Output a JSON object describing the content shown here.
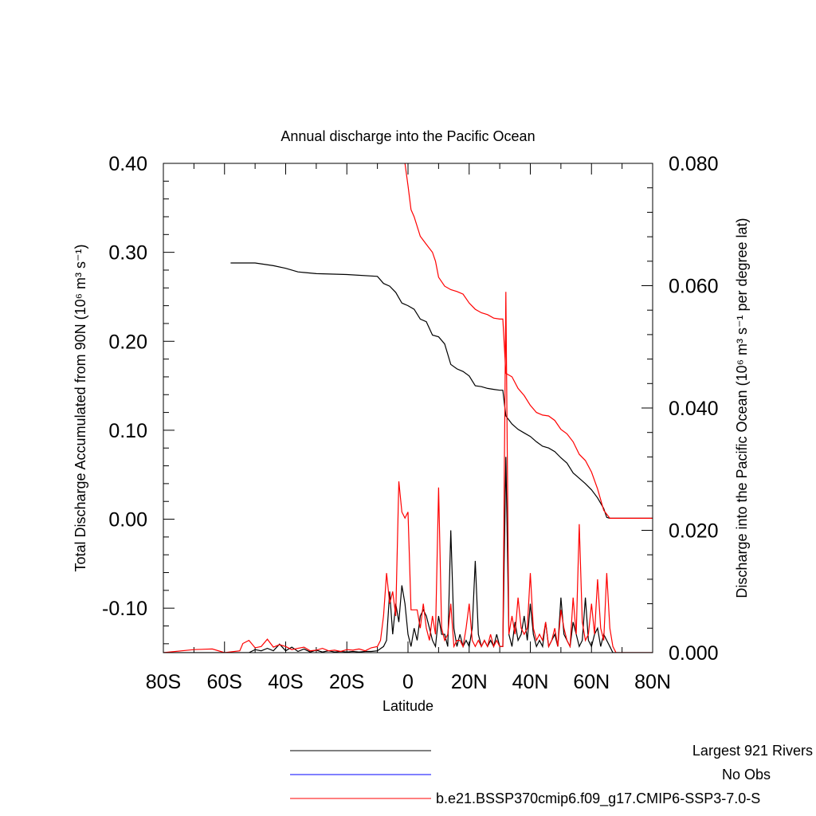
{
  "chart_data": {
    "type": "line",
    "title": "Annual discharge into the Pacific Ocean",
    "xlabel": "Latitude",
    "ylabel_left": "Total Discharge Accumulated from 90N (10⁶ m³ s⁻¹)",
    "ylabel_right": "Discharge into the Pacific Ocean (10⁶ m³ s⁻¹ per degree lat)",
    "xlim": [
      -80,
      80
    ],
    "ylim_left": [
      -0.15,
      0.4
    ],
    "ylim_right": [
      0.0,
      0.08
    ],
    "x_ticks": [
      -80,
      -60,
      -40,
      -20,
      0,
      20,
      40,
      60,
      80
    ],
    "x_tick_labels": [
      "80S",
      "60S",
      "40S",
      "20S",
      "0",
      "20N",
      "40N",
      "60N",
      "80N"
    ],
    "y_left_ticks": [
      -0.1,
      0.0,
      0.1,
      0.2,
      0.3,
      0.4
    ],
    "y_left_tick_labels": [
      "-0.10",
      "0.00",
      "0.10",
      "0.20",
      "0.30",
      "0.40"
    ],
    "y_right_ticks": [
      0.0,
      0.02,
      0.04,
      0.06,
      0.08
    ],
    "y_right_tick_labels": [
      "0.000",
      "0.020",
      "0.040",
      "0.060",
      "0.080"
    ],
    "grid": false,
    "legend_position": "bottom",
    "legend": [
      {
        "label": "Largest 921 Rivers",
        "color": "#000000"
      },
      {
        "label": "No Obs",
        "color": "#0000ff"
      },
      {
        "label": "b.e21.BSSP370cmip6.f09_g17.CMIP6-SSP3-7.0-S",
        "color": "#ff0000"
      }
    ],
    "series": [
      {
        "name": "Largest 921 Rivers",
        "axis": "left",
        "color": "#000000",
        "x": [
          -58,
          -50,
          -44,
          -40,
          -36,
          -30,
          -20,
          -10,
          -8,
          -6,
          -4,
          -2,
          0,
          2,
          4,
          6,
          8,
          10,
          12,
          14,
          16,
          18,
          20,
          22,
          24,
          26,
          28,
          30,
          31,
          32,
          34,
          36,
          38,
          40,
          42,
          44,
          46,
          48,
          50,
          52,
          54,
          56,
          58,
          60,
          62,
          64,
          65,
          66,
          68,
          70,
          75,
          80
        ],
        "y": [
          0.288,
          0.288,
          0.285,
          0.282,
          0.278,
          0.276,
          0.275,
          0.273,
          0.265,
          0.262,
          0.255,
          0.243,
          0.24,
          0.236,
          0.225,
          0.222,
          0.207,
          0.205,
          0.197,
          0.174,
          0.169,
          0.166,
          0.161,
          0.15,
          0.149,
          0.147,
          0.146,
          0.145,
          0.145,
          0.116,
          0.107,
          0.101,
          0.097,
          0.093,
          0.087,
          0.082,
          0.08,
          0.076,
          0.069,
          0.063,
          0.052,
          0.046,
          0.04,
          0.033,
          0.024,
          0.012,
          0.002,
          0.001,
          0.001,
          0.001,
          0.001,
          0.001
        ]
      },
      {
        "name": "b.e21.BSSP370cmip6.f09_g17.CMIP6-SSP3-7.0-S",
        "axis": "left",
        "color": "#ff0000",
        "x": [
          -1,
          0,
          1,
          2,
          4,
          6,
          8,
          9,
          10,
          12,
          14,
          16,
          18,
          20,
          22,
          24,
          26,
          28,
          30,
          31,
          32,
          34,
          36,
          38,
          40,
          42,
          44,
          46,
          48,
          50,
          52,
          54,
          56,
          58,
          60,
          62,
          64,
          66,
          70,
          75,
          80
        ],
        "y": [
          0.4,
          0.375,
          0.348,
          0.34,
          0.318,
          0.309,
          0.3,
          0.29,
          0.272,
          0.262,
          0.258,
          0.256,
          0.253,
          0.243,
          0.236,
          0.232,
          0.23,
          0.226,
          0.225,
          0.225,
          0.164,
          0.16,
          0.147,
          0.139,
          0.128,
          0.12,
          0.117,
          0.116,
          0.111,
          0.101,
          0.096,
          0.087,
          0.073,
          0.066,
          0.053,
          0.034,
          0.01,
          0.001,
          0.001,
          0.001,
          0.001
        ]
      },
      {
        "name": "Largest 921 Rivers (per degree)",
        "axis": "right",
        "color": "#000000",
        "x": [
          -80,
          -60,
          -52,
          -50,
          -48,
          -46,
          -44,
          -42,
          -40,
          -38,
          -36,
          -34,
          -32,
          -30,
          -28,
          -26,
          -24,
          -22,
          -20,
          -18,
          -16,
          -14,
          -12,
          -10,
          -8,
          -7,
          -6,
          -5,
          -4,
          -3,
          -2,
          -1,
          0,
          1,
          2,
          3,
          4,
          5,
          6,
          7,
          8,
          9,
          10,
          11,
          12,
          13,
          14,
          15,
          16,
          17,
          18,
          19,
          20,
          21,
          22,
          23,
          24,
          25,
          26,
          27,
          28,
          29,
          30,
          31,
          32,
          33,
          34,
          35,
          36,
          37,
          38,
          39,
          40,
          41,
          42,
          43,
          44,
          45,
          46,
          47,
          48,
          49,
          50,
          51,
          52,
          53,
          54,
          55,
          56,
          57,
          58,
          59,
          60,
          61,
          62,
          63,
          64,
          65,
          66,
          67,
          68,
          70,
          75,
          80
        ],
        "y": [
          0.0,
          0.0,
          0.0,
          0.0005,
          0.0003,
          0.0007,
          0.0003,
          0.0014,
          0.0003,
          0.0009,
          0.0002,
          0.0006,
          0.0001,
          0.0004,
          0.0001,
          0.0003,
          0.0001,
          0.0002,
          0.0001,
          0.0002,
          0.0001,
          0.0002,
          0.0002,
          0.0003,
          0.001,
          0.002,
          0.01,
          0.003,
          0.008,
          0.005,
          0.011,
          0.008,
          0.003,
          0.001,
          0.004,
          0.002,
          0.006,
          0.007,
          0.006,
          0.004,
          0.002,
          0.001,
          0.006,
          0.003,
          0.003,
          0.001,
          0.02,
          0.004,
          0.001,
          0.003,
          0.001,
          0.002,
          0.001,
          0.004,
          0.015,
          0.003,
          0.001,
          0.002,
          0.001,
          0.002,
          0.001,
          0.003,
          0.001,
          0.001,
          0.032,
          0.003,
          0.001,
          0.005,
          0.002,
          0.003,
          0.006,
          0.002,
          0.008,
          0.003,
          0.001,
          0.002,
          0.001,
          0.005,
          0.001,
          0.002,
          0.003,
          0.001,
          0.009,
          0.003,
          0.002,
          0.001,
          0.005,
          0.003,
          0.001,
          0.002,
          0.009,
          0.002,
          0.001,
          0.003,
          0.004,
          0.001,
          0.003,
          0.002,
          0.001,
          0.0,
          0.0,
          0.0,
          0.0,
          0.0
        ]
      },
      {
        "name": "b.e21.BSSP370cmip6.f09_g17.CMIP6-SSP3-7.0-S (per degree)",
        "axis": "right",
        "color": "#ff0000",
        "x": [
          -80,
          -70,
          -64,
          -60,
          -55,
          -54,
          -52,
          -50,
          -48,
          -46,
          -44,
          -42,
          -40,
          -38,
          -36,
          -34,
          -32,
          -30,
          -28,
          -26,
          -24,
          -22,
          -20,
          -18,
          -16,
          -14,
          -12,
          -10,
          -9,
          -8,
          -7,
          -6,
          -5,
          -4,
          -3,
          -2,
          -1,
          0,
          1,
          2,
          3,
          4,
          5,
          6,
          7,
          8,
          9,
          10,
          11,
          12,
          13,
          14,
          15,
          16,
          17,
          18,
          19,
          20,
          21,
          22,
          23,
          24,
          25,
          26,
          27,
          28,
          29,
          30,
          31,
          32,
          33,
          34,
          35,
          36,
          37,
          38,
          39,
          40,
          41,
          42,
          43,
          44,
          45,
          46,
          47,
          48,
          49,
          50,
          51,
          52,
          53,
          54,
          55,
          56,
          57,
          58,
          59,
          60,
          61,
          62,
          63,
          64,
          65,
          66,
          67,
          68,
          70,
          75,
          80
        ],
        "y": [
          0.0,
          0.0005,
          0.0006,
          0.0,
          0.0003,
          0.0015,
          0.002,
          0.0008,
          0.001,
          0.0022,
          0.0009,
          0.0013,
          0.001,
          0.0005,
          0.0007,
          0.0009,
          0.0003,
          0.0004,
          0.0007,
          0.0003,
          0.0004,
          0.0002,
          0.0005,
          0.0004,
          0.0006,
          0.0003,
          0.0008,
          0.001,
          0.002,
          0.006,
          0.013,
          0.008,
          0.01,
          0.006,
          0.028,
          0.023,
          0.022,
          0.023,
          0.007,
          0.007,
          0.007,
          0.004,
          0.008,
          0.004,
          0.002,
          0.006,
          0.003,
          0.027,
          0.004,
          0.002,
          0.003,
          0.008,
          0.001,
          0.002,
          0.002,
          0.001,
          0.004,
          0.008,
          0.002,
          0.001,
          0.002,
          0.001,
          0.002,
          0.001,
          0.003,
          0.001,
          0.002,
          0.001,
          0.001,
          0.059,
          0.003,
          0.006,
          0.003,
          0.009,
          0.004,
          0.003,
          0.004,
          0.013,
          0.004,
          0.002,
          0.003,
          0.002,
          0.005,
          0.001,
          0.002,
          0.004,
          0.001,
          0.007,
          0.004,
          0.002,
          0.001,
          0.009,
          0.003,
          0.021,
          0.005,
          0.002,
          0.003,
          0.008,
          0.003,
          0.012,
          0.004,
          0.002,
          0.013,
          0.004,
          0.001,
          0.0,
          0.0,
          0.0,
          0.0
        ]
      }
    ]
  }
}
